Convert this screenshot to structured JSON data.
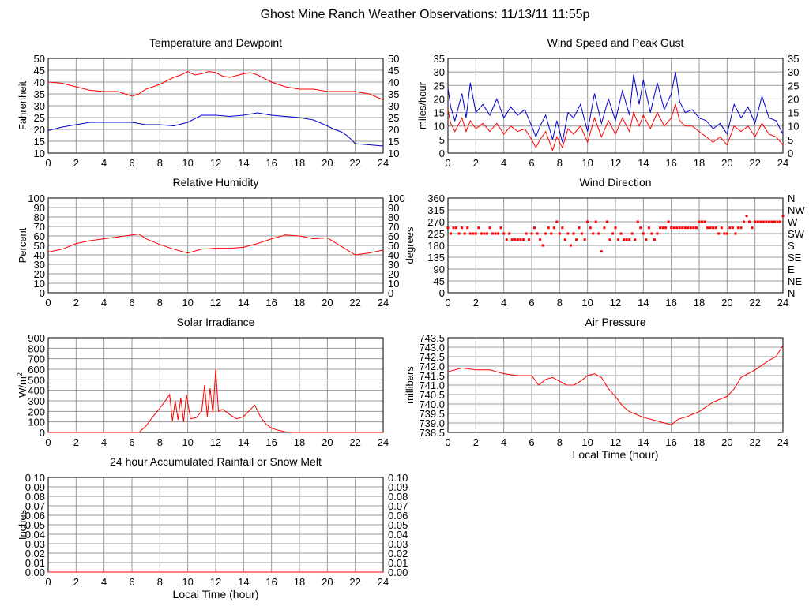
{
  "page_title": "Ghost Mine Ranch Weather Observations: 11/13/11 11:55p",
  "colors": {
    "red": "#ff0000",
    "blue": "#0000cc",
    "grid": "#999999",
    "axis": "#000000"
  },
  "chart_data": [
    {
      "id": "temp",
      "type": "line",
      "title": "Temperature and Dewpoint",
      "ylabel": "Fahrenheit",
      "xlabel": "",
      "xlim": [
        0,
        24
      ],
      "ylim": [
        10,
        50
      ],
      "xticks": [
        "0",
        "2",
        "4",
        "6",
        "8",
        "10",
        "12",
        "14",
        "16",
        "18",
        "20",
        "22",
        "24"
      ],
      "yticks": [
        "10",
        "15",
        "20",
        "25",
        "30",
        "35",
        "40",
        "45",
        "50"
      ],
      "right_yticks": [
        "10",
        "15",
        "20",
        "25",
        "30",
        "35",
        "40",
        "45",
        "50"
      ],
      "grid": true,
      "series": [
        {
          "color": "#ff0000",
          "x": [
            0,
            1,
            2,
            3,
            4,
            5,
            5.5,
            6,
            6.5,
            7,
            8,
            9,
            9.5,
            10,
            10.5,
            11,
            11.5,
            12,
            12.5,
            13,
            14,
            14.5,
            15,
            16,
            17,
            18,
            19,
            20,
            21,
            22,
            23,
            24
          ],
          "y": [
            40,
            39.5,
            38,
            36.5,
            36,
            36,
            35,
            34,
            35,
            37,
            39,
            42,
            43,
            44.5,
            43,
            43.5,
            44.5,
            44,
            42.5,
            42,
            43.5,
            44,
            43,
            40,
            38,
            37,
            37,
            36,
            36,
            36,
            35,
            32.5
          ]
        },
        {
          "color": "#0000cc",
          "x": [
            0,
            1,
            2,
            3,
            4,
            5,
            6,
            7,
            8,
            9,
            10,
            11,
            12,
            13,
            14,
            15,
            16,
            17,
            18,
            19,
            20,
            20.5,
            21,
            21.5,
            22,
            23,
            24
          ],
          "y": [
            19.5,
            21,
            22,
            23,
            23,
            23,
            23,
            22,
            22,
            21.5,
            23,
            26,
            26,
            25.5,
            26,
            27,
            26,
            25.5,
            25,
            24,
            21.5,
            20,
            19,
            17,
            14,
            13.5,
            13
          ]
        }
      ]
    },
    {
      "id": "wind",
      "type": "line",
      "title": "Wind Speed and Peak Gust",
      "ylabel": "miles/hour",
      "xlabel": "",
      "xlim": [
        0,
        24
      ],
      "ylim": [
        0,
        35
      ],
      "xticks": [
        "0",
        "2",
        "4",
        "6",
        "8",
        "10",
        "12",
        "14",
        "16",
        "18",
        "20",
        "22",
        "24"
      ],
      "yticks": [
        "0",
        "5",
        "10",
        "15",
        "20",
        "25",
        "30",
        "35"
      ],
      "right_yticks": [
        "0",
        "5",
        "10",
        "15",
        "20",
        "25",
        "30",
        "35"
      ],
      "grid": true,
      "series": [
        {
          "color": "#0000cc",
          "x": [
            0,
            0.2,
            0.5,
            1,
            1.3,
            1.6,
            2,
            2.5,
            3,
            3.5,
            4,
            4.5,
            5,
            5.5,
            6,
            6.3,
            6.6,
            7,
            7.5,
            7.8,
            8.2,
            8.6,
            9,
            9.5,
            10,
            10.5,
            11,
            11.5,
            12,
            12.5,
            13,
            13.3,
            13.7,
            14,
            14.5,
            15,
            15.5,
            16,
            16.3,
            16.6,
            17,
            17.5,
            18,
            18.5,
            19,
            19.5,
            20,
            20.5,
            21,
            21.5,
            22,
            22.5,
            23,
            23.5,
            24
          ],
          "y": [
            24,
            17,
            12,
            22,
            13,
            26,
            15,
            18,
            14,
            20,
            13,
            17,
            14,
            16,
            10,
            6,
            10,
            14,
            5,
            12,
            4,
            15,
            13,
            18,
            8,
            22,
            11,
            20,
            12,
            23,
            14,
            29,
            18,
            27,
            15,
            26,
            16,
            22,
            30,
            19,
            15,
            16,
            13,
            12,
            9,
            11,
            7,
            18,
            13,
            17,
            11,
            21,
            13,
            12,
            7
          ]
        },
        {
          "color": "#ff0000",
          "x": [
            0,
            0.2,
            0.5,
            1,
            1.3,
            1.6,
            2,
            2.5,
            3,
            3.5,
            4,
            4.5,
            5,
            5.5,
            6,
            6.3,
            6.6,
            7,
            7.5,
            7.8,
            8.2,
            8.6,
            9,
            9.5,
            10,
            10.5,
            11,
            11.5,
            12,
            12.5,
            13,
            13.3,
            13.7,
            14,
            14.5,
            15,
            15.5,
            16,
            16.3,
            16.6,
            17,
            17.5,
            18,
            18.5,
            19,
            19.5,
            20,
            20.5,
            21,
            21.5,
            22,
            22.5,
            23,
            23.5,
            24
          ],
          "y": [
            16,
            11,
            8,
            13,
            8,
            12,
            9,
            11,
            8,
            11,
            7,
            10,
            8,
            9,
            5,
            2,
            5,
            8,
            1,
            6,
            2,
            9,
            7,
            10,
            4,
            13,
            6,
            12,
            7,
            13,
            8,
            15,
            10,
            14,
            9,
            15,
            10,
            13,
            18,
            12,
            10,
            10,
            8,
            6,
            4,
            6,
            3,
            10,
            8,
            10,
            6,
            11,
            7,
            6,
            3
          ]
        }
      ]
    },
    {
      "id": "humidity",
      "type": "line",
      "title": "Relative Humidity",
      "ylabel": "Percent",
      "xlabel": "",
      "xlim": [
        0,
        24
      ],
      "ylim": [
        0,
        100
      ],
      "xticks": [
        "0",
        "2",
        "4",
        "6",
        "8",
        "10",
        "12",
        "14",
        "16",
        "18",
        "20",
        "22",
        "24"
      ],
      "yticks": [
        "0",
        "10",
        "20",
        "30",
        "40",
        "50",
        "60",
        "70",
        "80",
        "90",
        "100"
      ],
      "right_yticks": [
        "0",
        "10",
        "20",
        "30",
        "40",
        "50",
        "60",
        "70",
        "80",
        "90",
        "100"
      ],
      "grid": true,
      "series": [
        {
          "color": "#ff0000",
          "x": [
            0,
            1,
            2,
            3,
            4,
            5,
            6,
            6.5,
            7,
            8,
            9,
            10,
            11,
            12,
            13,
            14,
            15,
            16,
            17,
            18,
            19,
            20,
            21,
            22,
            23,
            24
          ],
          "y": [
            43,
            46,
            52,
            55,
            57,
            59,
            61,
            62,
            57,
            51,
            46,
            42,
            46,
            47,
            47,
            48,
            52,
            57,
            61,
            60,
            57,
            58,
            49,
            40,
            42,
            45
          ]
        }
      ]
    },
    {
      "id": "winddir",
      "type": "scatter",
      "title": "Wind Direction",
      "ylabel": "degrees",
      "xlabel": "",
      "xlim": [
        0,
        24
      ],
      "ylim": [
        0,
        360
      ],
      "xticks": [
        "0",
        "2",
        "4",
        "6",
        "8",
        "10",
        "12",
        "14",
        "16",
        "18",
        "20",
        "22",
        "24"
      ],
      "yticks": [
        "0",
        "45",
        "90",
        "135",
        "180",
        "225",
        "270",
        "315",
        "360"
      ],
      "right_yticks": [
        "N",
        "NE",
        "E",
        "SE",
        "S",
        "SW",
        "W",
        "NW",
        "N"
      ],
      "grid": true,
      "series": [
        {
          "color": "#ff0000",
          "x": [
            0,
            0.2,
            0.4,
            0.6,
            0.8,
            1,
            1.2,
            1.4,
            1.6,
            1.8,
            2,
            2.2,
            2.4,
            2.6,
            2.8,
            3,
            3.2,
            3.4,
            3.6,
            3.8,
            4,
            4.2,
            4.4,
            4.6,
            4.8,
            5,
            5.2,
            5.4,
            5.6,
            5.8,
            6,
            6.2,
            6.4,
            6.6,
            6.8,
            7,
            7.2,
            7.4,
            7.6,
            7.8,
            8,
            8.2,
            8.4,
            8.6,
            8.8,
            9,
            9.2,
            9.4,
            9.6,
            9.8,
            10,
            10.2,
            10.4,
            10.6,
            10.8,
            11,
            11.2,
            11.4,
            11.6,
            11.8,
            12,
            12.2,
            12.4,
            12.6,
            12.8,
            13,
            13.2,
            13.4,
            13.6,
            13.8,
            14,
            14.2,
            14.4,
            14.6,
            14.8,
            15,
            15.2,
            15.4,
            15.6,
            15.8,
            16,
            16.2,
            16.4,
            16.6,
            16.8,
            17,
            17.2,
            17.4,
            17.6,
            17.8,
            18,
            18.2,
            18.4,
            18.6,
            18.8,
            19,
            19.2,
            19.4,
            19.6,
            19.8,
            20,
            20.2,
            20.4,
            20.6,
            20.8,
            21,
            21.2,
            21.4,
            21.6,
            21.8,
            22,
            22.2,
            22.4,
            22.6,
            22.8,
            23,
            23.2,
            23.4,
            23.6,
            23.8,
            24
          ],
          "y": [
            247,
            225,
            247,
            247,
            225,
            247,
            225,
            247,
            225,
            225,
            225,
            247,
            225,
            225,
            225,
            247,
            225,
            225,
            225,
            247,
            225,
            202,
            225,
            202,
            202,
            202,
            202,
            202,
            225,
            202,
            225,
            247,
            225,
            202,
            180,
            225,
            247,
            225,
            247,
            270,
            225,
            247,
            202,
            225,
            180,
            225,
            202,
            247,
            225,
            202,
            270,
            247,
            225,
            270,
            225,
            157,
            247,
            270,
            202,
            225,
            247,
            202,
            225,
            202,
            202,
            202,
            225,
            202,
            270,
            247,
            225,
            202,
            247,
            225,
            202,
            225,
            247,
            247,
            247,
            270,
            247,
            247,
            247,
            247,
            247,
            247,
            247,
            247,
            247,
            247,
            270,
            270,
            270,
            247,
            247,
            247,
            247,
            225,
            247,
            225,
            225,
            247,
            247,
            225,
            247,
            247,
            270,
            292,
            270,
            247,
            270,
            270,
            270,
            270,
            270,
            270,
            270,
            270,
            270,
            270,
            292
          ]
        }
      ]
    },
    {
      "id": "solar",
      "type": "line",
      "title": "Solar Irradiance",
      "ylabel": "W/m2",
      "xlabel": "",
      "xlim": [
        0,
        24
      ],
      "ylim": [
        0,
        900
      ],
      "xticks": [
        "0",
        "2",
        "4",
        "6",
        "8",
        "10",
        "12",
        "14",
        "16",
        "18",
        "20",
        "22",
        "24"
      ],
      "yticks": [
        "0",
        "100",
        "200",
        "300",
        "400",
        "500",
        "600",
        "700",
        "800",
        "900"
      ],
      "right_yticks": [],
      "grid": true,
      "series": [
        {
          "color": "#ff0000",
          "x": [
            0,
            6.5,
            7,
            7.5,
            8,
            8.5,
            8.7,
            8.9,
            9.1,
            9.3,
            9.5,
            9.7,
            9.9,
            10.2,
            10.6,
            11,
            11.2,
            11.4,
            11.6,
            11.8,
            12,
            12.2,
            12.5,
            13,
            13.5,
            14,
            14.5,
            14.8,
            15.2,
            15.6,
            16,
            16.5,
            17,
            17.5,
            24
          ],
          "y": [
            0,
            0,
            60,
            150,
            230,
            320,
            360,
            110,
            300,
            120,
            330,
            100,
            360,
            130,
            140,
            200,
            450,
            150,
            420,
            180,
            600,
            200,
            220,
            170,
            130,
            150,
            220,
            260,
            150,
            80,
            40,
            20,
            5,
            0,
            0
          ]
        }
      ]
    },
    {
      "id": "pressure",
      "type": "line",
      "title": "Air Pressure",
      "ylabel": "millibars",
      "xlabel": "Local Time (hour)",
      "xlim": [
        0,
        24
      ],
      "ylim": [
        738.5,
        743.5
      ],
      "xticks": [
        "0",
        "2",
        "4",
        "6",
        "8",
        "10",
        "12",
        "14",
        "16",
        "18",
        "20",
        "22",
        "24"
      ],
      "yticks": [
        "738.5",
        "739.0",
        "739.5",
        "740.0",
        "740.5",
        "741.0",
        "741.5",
        "742.0",
        "742.5",
        "743.0",
        "743.5"
      ],
      "right_yticks": [],
      "grid": true,
      "series": [
        {
          "color": "#ff0000",
          "x": [
            0,
            0.5,
            1,
            2,
            3,
            4,
            5,
            6,
            6.5,
            7,
            7.5,
            8,
            8.5,
            9,
            9.5,
            10,
            10.5,
            11,
            11.5,
            12,
            12.5,
            13,
            14,
            15,
            15.5,
            16,
            16.5,
            17,
            18,
            19,
            20,
            20.5,
            21,
            22,
            23,
            23.5,
            24
          ],
          "y": [
            741.7,
            741.8,
            741.9,
            741.8,
            741.8,
            741.6,
            741.5,
            741.5,
            741.0,
            741.3,
            741.4,
            741.2,
            741.0,
            741.0,
            741.2,
            741.5,
            741.6,
            741.4,
            740.8,
            740.4,
            739.9,
            739.6,
            739.3,
            739.1,
            739.0,
            738.9,
            739.2,
            739.3,
            739.6,
            740.1,
            740.4,
            740.8,
            741.4,
            741.8,
            742.3,
            742.5,
            743.1
          ]
        }
      ]
    },
    {
      "id": "rain",
      "type": "line",
      "title": "24 hour Accumulated Rainfall or Snow Melt",
      "ylabel": "Inches",
      "xlabel": "Local Time (hour)",
      "xlim": [
        0,
        24
      ],
      "ylim": [
        0,
        0.1
      ],
      "xticks": [
        "0",
        "2",
        "4",
        "6",
        "8",
        "10",
        "12",
        "14",
        "16",
        "18",
        "20",
        "22",
        "24"
      ],
      "yticks": [
        "0.00",
        "0.01",
        "0.02",
        "0.03",
        "0.04",
        "0.05",
        "0.06",
        "0.07",
        "0.08",
        "0.09",
        "0.10"
      ],
      "right_yticks": [
        "0.00",
        "0.01",
        "0.02",
        "0.03",
        "0.04",
        "0.05",
        "0.06",
        "0.07",
        "0.08",
        "0.09",
        "0.10"
      ],
      "grid": true,
      "series": [
        {
          "color": "#ff0000",
          "x": [
            0,
            24
          ],
          "y": [
            0,
            0
          ]
        }
      ]
    }
  ]
}
